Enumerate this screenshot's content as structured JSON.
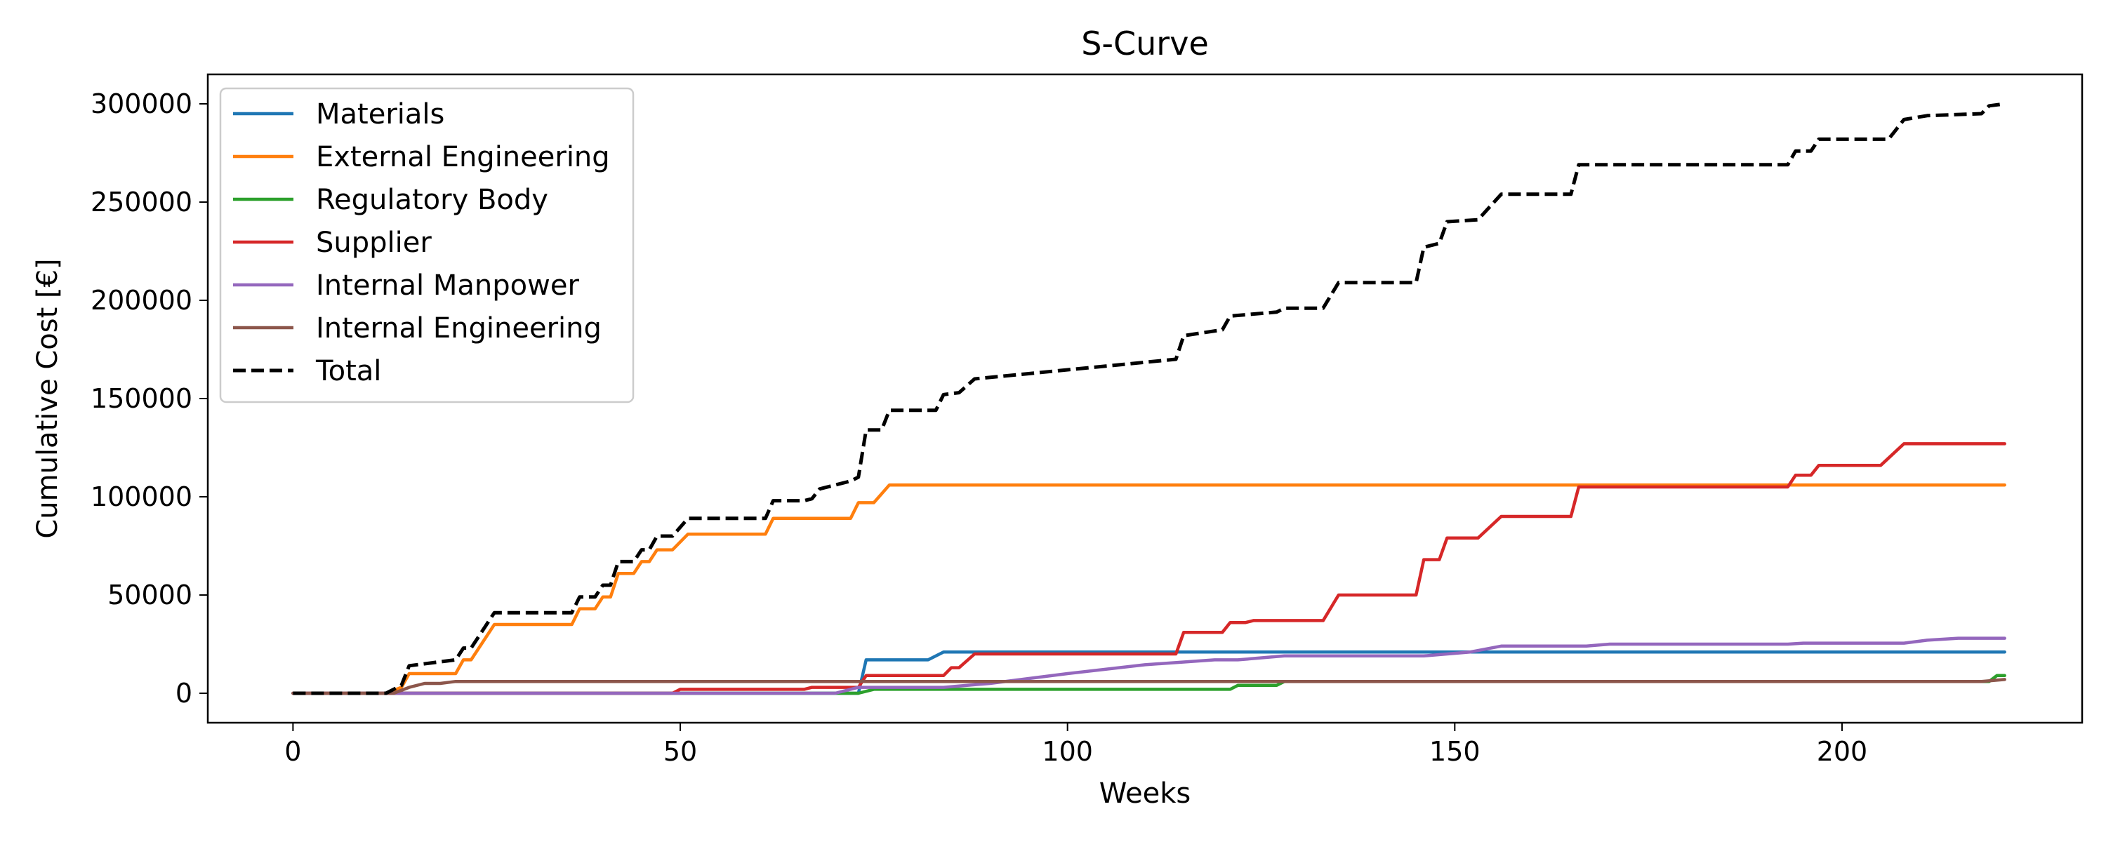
{
  "chart_data": {
    "type": "line",
    "title": "S-Curve",
    "xlabel": "Weeks",
    "ylabel": "Cumulative Cost [€]",
    "xlim": [
      -11,
      231
    ],
    "ylim": [
      -15000,
      315000
    ],
    "xticks": [
      0,
      50,
      100,
      150,
      200
    ],
    "yticks": [
      0,
      50000,
      100000,
      150000,
      200000,
      250000,
      300000
    ],
    "grid": false,
    "legend_position": "upper-left",
    "series": [
      {
        "name": "Materials",
        "color": "#1f77b4",
        "style": "solid",
        "points": [
          [
            0,
            0
          ],
          [
            73,
            0
          ],
          [
            74,
            17000
          ],
          [
            82,
            17000
          ],
          [
            84,
            21000
          ],
          [
            221,
            21000
          ]
        ]
      },
      {
        "name": "External Engineering",
        "color": "#ff7f0e",
        "style": "solid",
        "points": [
          [
            0,
            0
          ],
          [
            12,
            0
          ],
          [
            14,
            3000
          ],
          [
            15,
            10000
          ],
          [
            21,
            10000
          ],
          [
            22,
            17000
          ],
          [
            23,
            17000
          ],
          [
            26,
            35000
          ],
          [
            36,
            35000
          ],
          [
            37,
            43000
          ],
          [
            39,
            43000
          ],
          [
            40,
            49000
          ],
          [
            41,
            49000
          ],
          [
            42,
            61000
          ],
          [
            44,
            61000
          ],
          [
            45,
            67000
          ],
          [
            46,
            67000
          ],
          [
            47,
            73000
          ],
          [
            49,
            73000
          ],
          [
            51,
            81000
          ],
          [
            61,
            81000
          ],
          [
            62,
            89000
          ],
          [
            72,
            89000
          ],
          [
            73,
            97000
          ],
          [
            75,
            97000
          ],
          [
            77,
            106000
          ],
          [
            221,
            106000
          ]
        ]
      },
      {
        "name": "Regulatory Body",
        "color": "#2ca02c",
        "style": "solid",
        "points": [
          [
            0,
            0
          ],
          [
            73,
            0
          ],
          [
            75,
            2000
          ],
          [
            121,
            2000
          ],
          [
            122,
            4000
          ],
          [
            127,
            4000
          ],
          [
            128,
            6000
          ],
          [
            219,
            6000
          ],
          [
            220,
            9000
          ],
          [
            221,
            9000
          ]
        ]
      },
      {
        "name": "Supplier",
        "color": "#d62728",
        "style": "solid",
        "points": [
          [
            0,
            0
          ],
          [
            49,
            0
          ],
          [
            50,
            2000
          ],
          [
            66,
            2000
          ],
          [
            67,
            3000
          ],
          [
            73,
            3000
          ],
          [
            74,
            9000
          ],
          [
            84,
            9000
          ],
          [
            85,
            13000
          ],
          [
            86,
            13000
          ],
          [
            88,
            20000
          ],
          [
            114,
            20000
          ],
          [
            115,
            31000
          ],
          [
            120,
            31000
          ],
          [
            121,
            36000
          ],
          [
            123,
            36000
          ],
          [
            124,
            37000
          ],
          [
            133,
            37000
          ],
          [
            135,
            50000
          ],
          [
            145,
            50000
          ],
          [
            146,
            68000
          ],
          [
            148,
            68000
          ],
          [
            149,
            79000
          ],
          [
            153,
            79000
          ],
          [
            156,
            90000
          ],
          [
            165,
            90000
          ],
          [
            166,
            105000
          ],
          [
            193,
            105000
          ],
          [
            194,
            111000
          ],
          [
            196,
            111000
          ],
          [
            197,
            116000
          ],
          [
            205,
            116000
          ],
          [
            208,
            127000
          ],
          [
            221,
            127000
          ]
        ]
      },
      {
        "name": "Internal Manpower",
        "color": "#9467bd",
        "style": "solid",
        "points": [
          [
            0,
            0
          ],
          [
            70,
            0
          ],
          [
            73,
            3000
          ],
          [
            84,
            3000
          ],
          [
            90,
            5000
          ],
          [
            100,
            10000
          ],
          [
            110,
            14500
          ],
          [
            119,
            17000
          ],
          [
            122,
            17000
          ],
          [
            128,
            19000
          ],
          [
            146,
            19000
          ],
          [
            152,
            21000
          ],
          [
            156,
            24000
          ],
          [
            167,
            24000
          ],
          [
            170,
            25000
          ],
          [
            193,
            25000
          ],
          [
            195,
            25500
          ],
          [
            208,
            25500
          ],
          [
            211,
            27000
          ],
          [
            215,
            28000
          ],
          [
            221,
            28000
          ]
        ]
      },
      {
        "name": "Internal Engineering",
        "color": "#8c564b",
        "style": "solid",
        "points": [
          [
            0,
            0
          ],
          [
            13,
            0
          ],
          [
            15,
            3000
          ],
          [
            17,
            5000
          ],
          [
            19,
            5000
          ],
          [
            21,
            6000
          ],
          [
            218,
            6000
          ],
          [
            221,
            7000
          ]
        ]
      },
      {
        "name": "Total",
        "color": "#000000",
        "style": "dashed",
        "points": [
          [
            0,
            0
          ],
          [
            12,
            0
          ],
          [
            14,
            4000
          ],
          [
            15,
            14000
          ],
          [
            19,
            16000
          ],
          [
            21,
            17000
          ],
          [
            22,
            23000
          ],
          [
            23,
            23000
          ],
          [
            26,
            41000
          ],
          [
            36,
            41000
          ],
          [
            37,
            49000
          ],
          [
            39,
            49000
          ],
          [
            40,
            55000
          ],
          [
            41,
            55000
          ],
          [
            42,
            67000
          ],
          [
            44,
            67000
          ],
          [
            45,
            73000
          ],
          [
            46,
            73000
          ],
          [
            47,
            80000
          ],
          [
            49,
            80000
          ],
          [
            51,
            89000
          ],
          [
            61,
            89000
          ],
          [
            62,
            98000
          ],
          [
            66,
            98000
          ],
          [
            67,
            99000
          ],
          [
            68,
            104000
          ],
          [
            72,
            108000
          ],
          [
            73,
            110000
          ],
          [
            74,
            134000
          ],
          [
            76,
            134000
          ],
          [
            77,
            144000
          ],
          [
            83,
            144000
          ],
          [
            84,
            152000
          ],
          [
            86,
            153000
          ],
          [
            88,
            160000
          ],
          [
            114,
            170000
          ],
          [
            115,
            182000
          ],
          [
            120,
            185000
          ],
          [
            121,
            192000
          ],
          [
            127,
            194000
          ],
          [
            128,
            196000
          ],
          [
            133,
            196000
          ],
          [
            135,
            209000
          ],
          [
            145,
            209000
          ],
          [
            146,
            227000
          ],
          [
            148,
            229000
          ],
          [
            149,
            240000
          ],
          [
            153,
            241000
          ],
          [
            156,
            254000
          ],
          [
            165,
            254000
          ],
          [
            166,
            269000
          ],
          [
            193,
            269000
          ],
          [
            194,
            276000
          ],
          [
            196,
            276000
          ],
          [
            197,
            282000
          ],
          [
            206,
            282000
          ],
          [
            208,
            292000
          ],
          [
            211,
            294000
          ],
          [
            218,
            295000
          ],
          [
            219,
            299000
          ],
          [
            221,
            300000
          ]
        ]
      }
    ]
  }
}
